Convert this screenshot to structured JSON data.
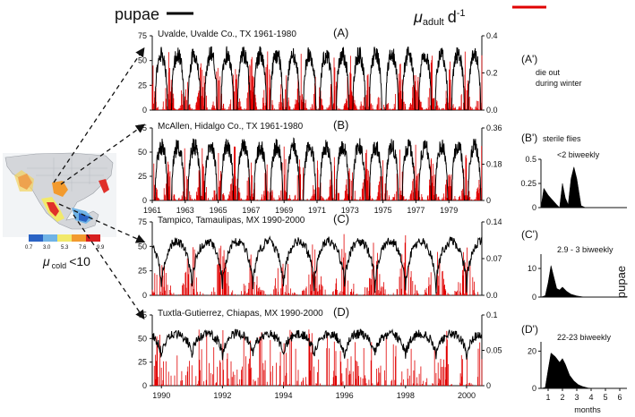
{
  "legend": {
    "pupae_label": "pupae",
    "pupae_color": "#000000",
    "mu_symbol": "μ",
    "mu_sub": "adult",
    "mu_unit": "d",
    "mu_exp": "-1",
    "mu_color": "#e00000"
  },
  "map": {
    "colorbar_ticks": [
      "0.7",
      "3.0",
      "5.3",
      "7.6",
      "9.9"
    ],
    "colorbar_colors": [
      "#2a63c4",
      "#6fb3e6",
      "#f2e96a",
      "#f29a2e",
      "#d71f1f"
    ],
    "mu_symbol": "μ",
    "mu_sub": "cold",
    "mu_suffix": "<10"
  },
  "panels": [
    {
      "title": "Uvalde, Uvalde Co., TX 1961-1980",
      "tag": "(A)",
      "left_ticks": [
        "0",
        "25",
        "50",
        "75"
      ],
      "right_ticks": [
        "0.0",
        "0.2",
        "0.4"
      ],
      "x_ticks": [],
      "side_tag": "(A')",
      "side_text": [
        "die out",
        "during winter"
      ]
    },
    {
      "title": "McAllen, Hidalgo Co., TX 1961-1980",
      "tag": "(B)",
      "left_ticks": [
        "0",
        "25",
        "50",
        "75"
      ],
      "right_ticks": [
        "0",
        "0.18",
        "0.36"
      ],
      "x_ticks": [
        "1961",
        "1963",
        "1965",
        "1967",
        "1969",
        "1971",
        "1973",
        "1975",
        "1977",
        "1979"
      ],
      "side_tag": "(B')",
      "side_text": [
        "sterile flies"
      ]
    },
    {
      "title": "Tampico, Tamaulipas, MX  1990-2000",
      "tag": "(C)",
      "left_ticks": [
        "0",
        "25",
        "50",
        "75"
      ],
      "right_ticks": [
        "0.0",
        "0.07",
        "0.14"
      ],
      "x_ticks": [],
      "side_tag": "(C')",
      "side_text": []
    },
    {
      "title": "Tuxtla-Gutierrez, Chiapas, MX  1990-2000",
      "tag": "(D)",
      "left_ticks": [
        "0",
        "25",
        "50",
        "75"
      ],
      "right_ticks": [
        "0",
        "0.05",
        "0.1"
      ],
      "x_ticks": [
        "1990",
        "1992",
        "1994",
        "1996",
        "1998",
        "2000"
      ],
      "side_tag": "(D')",
      "side_text": []
    }
  ],
  "insets": [
    {
      "label": "<2 biweekly",
      "y_ticks": [
        "0",
        "0.25",
        "0.5"
      ]
    },
    {
      "label": "2.9 - 3 biweekly",
      "y_ticks": [
        "0",
        "10"
      ]
    },
    {
      "label": "22-23 biweekly",
      "y_ticks": [
        "0",
        "20"
      ]
    }
  ],
  "insets_axis": {
    "x_ticks": [
      "1",
      "2",
      "3",
      "4",
      "5",
      "6"
    ],
    "xlabel": "months",
    "ylabel": "pupae"
  },
  "chart_data": [
    {
      "type": "line",
      "title": "Uvalde, Uvalde Co., TX 1961-1980",
      "x_range": [
        1961,
        1981
      ],
      "ylim": [
        0,
        75
      ],
      "y2lim": [
        0,
        0.4
      ],
      "series": [
        {
          "name": "pupae",
          "peak": 62,
          "seasonal": true,
          "winter_level": 0
        },
        {
          "name": "μ adult d-1",
          "axis": "right",
          "peak": 0.35
        }
      ]
    },
    {
      "type": "line",
      "title": "McAllen, Hidalgo Co., TX 1961-1980",
      "x_range": [
        1961,
        1981
      ],
      "ylim": [
        0,
        75
      ],
      "y2lim": [
        0,
        0.36
      ],
      "series": [
        {
          "name": "pupae",
          "peak": 62,
          "seasonal": true,
          "winter_level": 0
        },
        {
          "name": "μ adult d-1",
          "axis": "right",
          "peak": 0.3
        }
      ]
    },
    {
      "type": "line",
      "title": "Tampico, Tamaulipas, MX 1990-2000",
      "x_range": [
        1989.7,
        2000.5
      ],
      "ylim": [
        0,
        75
      ],
      "y2lim": [
        0,
        0.14
      ],
      "series": [
        {
          "name": "pupae",
          "peak": 55,
          "seasonal": true,
          "winter_level": 5
        },
        {
          "name": "μ adult d-1",
          "axis": "right",
          "peak": 0.13
        }
      ]
    },
    {
      "type": "line",
      "title": "Tuxtla-Gutierrez, Chiapas, MX 1990-2000",
      "x_range": [
        1989.7,
        2000.5
      ],
      "ylim": [
        0,
        75
      ],
      "y2lim": [
        0,
        0.1
      ],
      "series": [
        {
          "name": "pupae",
          "peak": 55,
          "seasonal": true,
          "winter_level": 30
        },
        {
          "name": "μ adult d-1",
          "axis": "right",
          "peak": 0.08
        }
      ]
    },
    {
      "type": "area",
      "title": "<2 biweekly",
      "xlim": [
        0.5,
        6.5
      ],
      "ylim": [
        0,
        0.5
      ],
      "x": [
        0.5,
        0.7,
        1.0,
        1.3,
        1.6,
        1.8,
        2.0,
        2.2,
        2.4,
        2.6,
        2.8,
        3.0,
        3.3,
        3.6,
        4.0
      ],
      "y": [
        0.0,
        0.2,
        0.13,
        0.08,
        0.03,
        0.0,
        0.25,
        0.1,
        0.03,
        0.3,
        0.42,
        0.3,
        0.02,
        0.0,
        0.0
      ]
    },
    {
      "type": "area",
      "title": "2.9 - 3 biweekly",
      "xlim": [
        0.5,
        6.5
      ],
      "ylim": [
        0,
        15
      ],
      "x": [
        0.5,
        0.8,
        1.0,
        1.2,
        1.4,
        1.6,
        1.8,
        2.0,
        2.3,
        2.6,
        3.0,
        3.4,
        3.8,
        4.2
      ],
      "y": [
        0,
        0.5,
        5,
        11,
        7,
        3,
        2.5,
        3.5,
        2,
        1,
        0.4,
        0.1,
        0,
        0
      ]
    },
    {
      "type": "area",
      "title": "22-23 biweekly",
      "xlim": [
        0.5,
        6.5
      ],
      "ylim": [
        0,
        25
      ],
      "x": [
        0.5,
        0.8,
        1.0,
        1.2,
        1.5,
        1.8,
        2.0,
        2.2,
        2.5,
        2.8,
        3.1,
        3.4,
        3.8,
        4.2
      ],
      "y": [
        0,
        0.5,
        10,
        19,
        17,
        14,
        16,
        13,
        7,
        4,
        2,
        1,
        0.2,
        0
      ]
    }
  ]
}
